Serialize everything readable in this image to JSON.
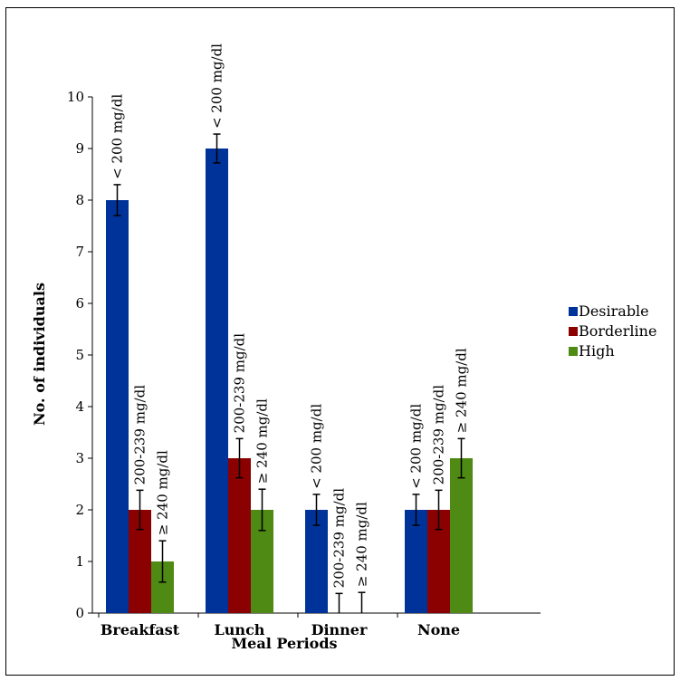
{
  "chart_data": {
    "type": "bar",
    "title": "",
    "xlabel": "Meal Periods",
    "ylabel": "No. of individuals",
    "ylim": [
      0,
      10
    ],
    "yticks": [
      "0",
      "1",
      "2",
      "3",
      "4",
      "5",
      "6",
      "7",
      "8",
      "9",
      "10"
    ],
    "categories": [
      "Breakfast",
      "Lunch",
      "Dinner",
      "None"
    ],
    "grid": false,
    "legend_position": "right",
    "series": [
      {
        "name": "Desirable",
        "color": "#003399",
        "values": [
          8,
          9,
          2,
          2
        ],
        "errors": [
          0.3,
          0.28,
          0.3,
          0.3
        ],
        "labels": [
          "< 200 mg/dl",
          "< 200 mg/dl",
          "< 200 mg/dl",
          "< 200 mg/dl"
        ]
      },
      {
        "name": "Borderline",
        "color": "#8b0000",
        "values": [
          2,
          3,
          0,
          2
        ],
        "errors": [
          0.38,
          0.38,
          0.38,
          0.38
        ],
        "labels": [
          "200-239 mg/dl",
          "200-239 mg/dl",
          "200-239 mg/dl",
          "200-239 mg/dl"
        ]
      },
      {
        "name": "High",
        "color": "#4e8a14",
        "values": [
          1,
          2,
          0,
          3
        ],
        "errors": [
          0.4,
          0.4,
          0.4,
          0.38
        ],
        "labels": [
          "≥ 240 mg/dl",
          "≥ 240 mg/dl",
          "≥ 240 mg/dl",
          "≥ 240 mg/dl"
        ]
      }
    ]
  }
}
